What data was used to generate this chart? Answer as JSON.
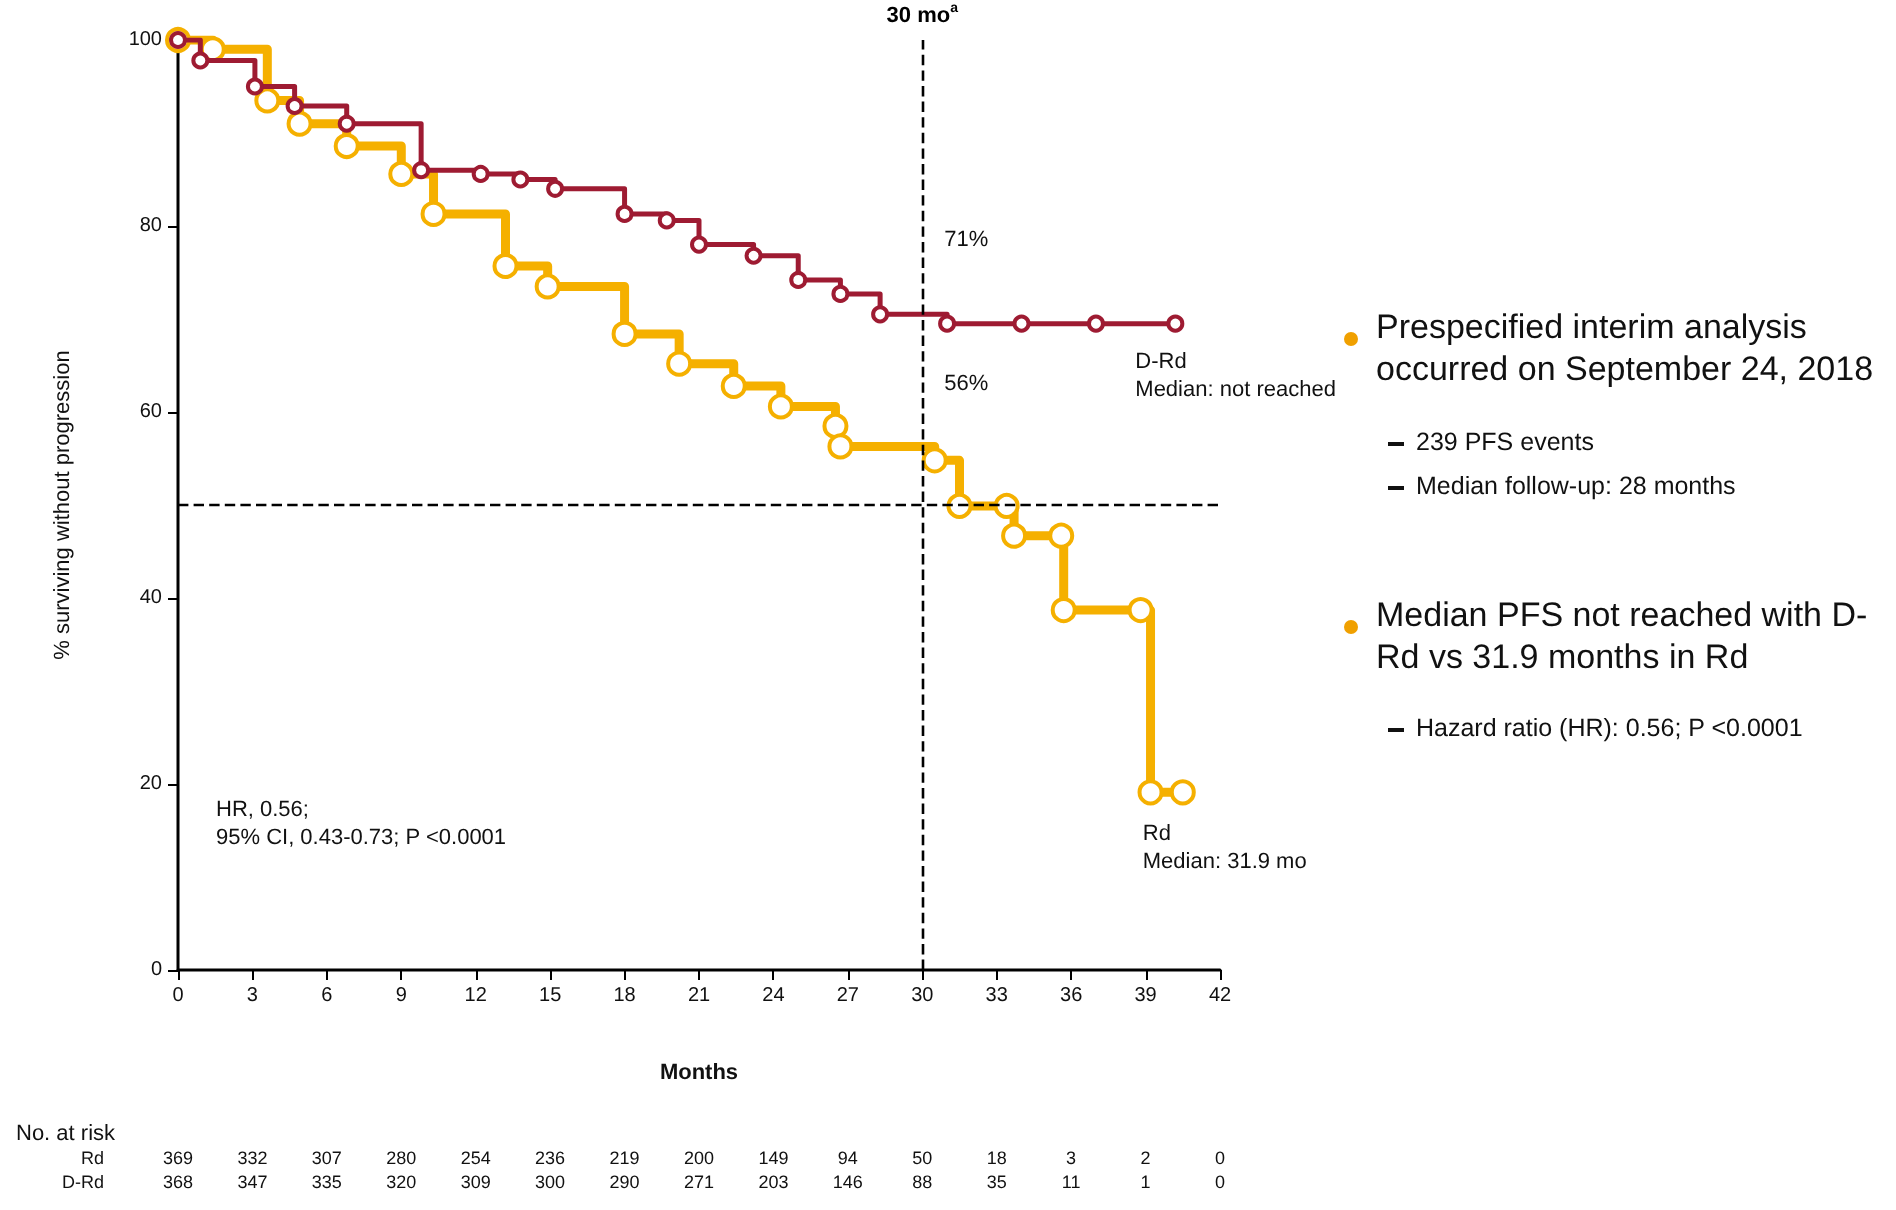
{
  "chart_data": {
    "type": "step",
    "xlabel": "Months",
    "ylabel": "% surviving without progression",
    "series": [
      {
        "name": "D-Rd",
        "color": "#9e1b32",
        "x": [
          0,
          0.9,
          3.1,
          4.7,
          6.8,
          9.8,
          12.2,
          13.8,
          15.2,
          18,
          19.7,
          21,
          23.2,
          25,
          26.7,
          28.3,
          31,
          34,
          37,
          40.2
        ],
        "values": [
          100,
          97.8,
          95,
          92.9,
          91,
          86,
          85.6,
          85,
          84,
          81.3,
          80.6,
          78,
          76.8,
          74.2,
          72.7,
          70.5,
          69.5,
          69.5,
          69.5,
          69.5
        ]
      },
      {
        "name": "Rd",
        "color": "#f5b000",
        "x": [
          0,
          1.4,
          3.6,
          4.9,
          6.8,
          9,
          10.3,
          13.2,
          14.9,
          18,
          20.2,
          22.4,
          24.3,
          26.5,
          26.7,
          30.5,
          31.5,
          33.4,
          33.7,
          35.6,
          35.7,
          38.8,
          39.2,
          40.5
        ],
        "values": [
          100,
          99,
          93.5,
          91,
          88.6,
          85.6,
          81.3,
          75.7,
          73.5,
          68.4,
          65.2,
          62.8,
          60.6,
          58.5,
          56.3,
          54.8,
          49.9,
          49.9,
          46.7,
          46.7,
          38.7,
          38.7,
          19.1,
          19.1
        ]
      }
    ],
    "xlim": [
      0,
      42
    ],
    "xticks": [
      0,
      3,
      6,
      9,
      12,
      15,
      18,
      21,
      24,
      27,
      30,
      33,
      36,
      39,
      42
    ],
    "ylim": [
      0,
      100
    ],
    "yticks": [
      0,
      20,
      40,
      60,
      80,
      100
    ],
    "marker": "circle",
    "legend": false,
    "grid": false,
    "ref_lines": [
      {
        "axis": "x",
        "value": 30,
        "label": "30 mo$^{a}$",
        "color": "#000000",
        "line_style": "dashed"
      },
      {
        "axis": "y",
        "value": 50,
        "color": "#000000",
        "line_style": "dashed"
      }
    ],
    "annotations": [
      "HR, 0.56;\n95% CI, 0.43-0.73; P <0.0001",
      {
        "text": "71%",
        "x": 30,
        "y": 71
      },
      {
        "text": "56%",
        "x": 30,
        "y": 56
      },
      "Median: not reached",
      "Median: 31.9 mo",
      "Prespecified interim analysis occurred on September 24, 2018",
      "239 PFS events",
      "Median follow-up: 28 months",
      "Median PFS not reached with D-Rd vs 31.9 months in Rd",
      "Hazard ratio (HR): 0.56; P <0.0001",
      "No. at risk",
      "Rd 369 332 307 280 254 236 219 200 149 94 50 18 3 2 0",
      "D-Rd 368 347 335 320 309 300 290 271 203 146 88 35 11 1 0"
    ]
  }
}
